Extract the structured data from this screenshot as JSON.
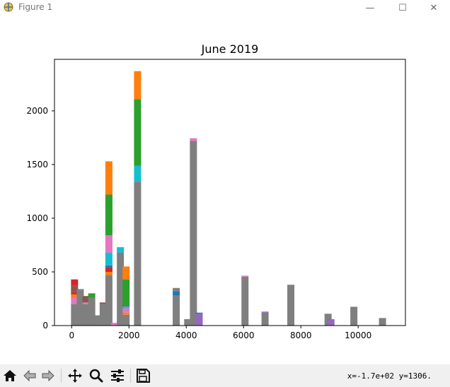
{
  "window": {
    "title": "Figure 1",
    "minimize_glyph": "—",
    "maximize_glyph": "☐",
    "close_glyph": "✕",
    "app_icon": "matplotlib-figure-icon"
  },
  "toolbar": {
    "buttons": [
      {
        "name": "home",
        "icon": "home-icon"
      },
      {
        "name": "back",
        "icon": "arrow-left-icon"
      },
      {
        "name": "forward",
        "icon": "arrow-right-icon"
      },
      {
        "name": "pan",
        "icon": "move-icon"
      },
      {
        "name": "zoom",
        "icon": "magnifier-icon"
      },
      {
        "name": "configure-subplots",
        "icon": "sliders-icon"
      },
      {
        "name": "save",
        "icon": "floppy-disk-icon"
      }
    ],
    "coordinates": "x=-1.7e+02 y=1306."
  },
  "chart_data": {
    "type": "bar",
    "title": "June 2019",
    "xlabel": "",
    "ylabel": "",
    "xlim": [
      -600,
      11650
    ],
    "ylim": [
      0,
      2480
    ],
    "xticks": [
      0,
      2000,
      4000,
      6000,
      8000,
      10000
    ],
    "xtick_labels": [
      "0",
      "2000",
      "4000",
      "6000",
      "8000",
      "10000"
    ],
    "yticks": [
      0,
      500,
      1000,
      1500,
      2000
    ],
    "ytick_labels": [
      "0",
      "500",
      "1000",
      "1500",
      "2000"
    ],
    "grid": false,
    "legend": "none",
    "colors": {
      "blue": "#1f77b4",
      "orange": "#ff7f0e",
      "green": "#2ca02c",
      "red": "#d62728",
      "purple": "#9467bd",
      "brown": "#8c564b",
      "pink": "#e377c2",
      "gray": "#7f7f7f",
      "cyan": "#17becf"
    },
    "bars": [
      {
        "x": 100,
        "segments": [
          {
            "color": "gray",
            "value": 200
          },
          {
            "color": "pink",
            "value": 60
          },
          {
            "color": "orange",
            "value": 30
          },
          {
            "color": "red",
            "value": 20
          },
          {
            "color": "brown",
            "value": 60
          },
          {
            "color": "red",
            "value": 60
          }
        ]
      },
      {
        "x": 300,
        "segments": [
          {
            "color": "gray",
            "value": 330
          },
          {
            "color": "purple",
            "value": 10
          }
        ]
      },
      {
        "x": 500,
        "segments": [
          {
            "color": "gray",
            "value": 200
          },
          {
            "color": "pink",
            "value": 15
          },
          {
            "color": "brown",
            "value": 60
          }
        ]
      },
      {
        "x": 700,
        "segments": [
          {
            "color": "gray",
            "value": 260
          },
          {
            "color": "green",
            "value": 40
          }
        ]
      },
      {
        "x": 900,
        "segments": [
          {
            "color": "gray",
            "value": 95
          }
        ]
      },
      {
        "x": 1100,
        "segments": [
          {
            "color": "gray",
            "value": 200
          },
          {
            "color": "brown",
            "value": 15
          }
        ]
      },
      {
        "x": 1300,
        "segments": [
          {
            "color": "gray",
            "value": 470
          },
          {
            "color": "orange",
            "value": 30
          },
          {
            "color": "red",
            "value": 40
          },
          {
            "color": "blue",
            "value": 20
          },
          {
            "color": "cyan",
            "value": 120
          },
          {
            "color": "pink",
            "value": 160
          },
          {
            "color": "green",
            "value": 380
          },
          {
            "color": "orange",
            "value": 310
          }
        ]
      },
      {
        "x": 1500,
        "segments": [
          {
            "color": "pink",
            "value": 25
          }
        ]
      },
      {
        "x": 1700,
        "segments": [
          {
            "color": "gray",
            "value": 680
          },
          {
            "color": "cyan",
            "value": 50
          }
        ]
      },
      {
        "x": 1900,
        "segments": [
          {
            "color": "gray",
            "value": 100
          },
          {
            "color": "orange",
            "value": 20
          },
          {
            "color": "pink",
            "value": 40
          },
          {
            "color": "cyan",
            "value": 20
          },
          {
            "color": "red",
            "value": 10
          },
          {
            "color": "green",
            "value": 240
          },
          {
            "color": "orange",
            "value": 120
          }
        ]
      },
      {
        "x": 2300,
        "segments": [
          {
            "color": "gray",
            "value": 1340
          },
          {
            "color": "cyan",
            "value": 150
          },
          {
            "color": "green",
            "value": 620
          },
          {
            "color": "orange",
            "value": 260
          }
        ]
      },
      {
        "x": 3650,
        "segments": [
          {
            "color": "gray",
            "value": 280
          },
          {
            "color": "blue",
            "value": 40
          },
          {
            "color": "gray",
            "value": 30
          }
        ]
      },
      {
        "x": 4050,
        "segments": [
          {
            "color": "gray",
            "value": 60
          }
        ]
      },
      {
        "x": 4250,
        "segments": [
          {
            "color": "gray",
            "value": 1720
          },
          {
            "color": "pink",
            "value": 25
          }
        ]
      },
      {
        "x": 4450,
        "segments": [
          {
            "color": "purple",
            "value": 110
          },
          {
            "color": "blue",
            "value": 10
          }
        ]
      },
      {
        "x": 6050,
        "segments": [
          {
            "color": "gray",
            "value": 455
          },
          {
            "color": "pink",
            "value": 10
          }
        ]
      },
      {
        "x": 6750,
        "segments": [
          {
            "color": "gray",
            "value": 120
          },
          {
            "color": "purple",
            "value": 10
          }
        ]
      },
      {
        "x": 7650,
        "segments": [
          {
            "color": "gray",
            "value": 380
          }
        ]
      },
      {
        "x": 8950,
        "segments": [
          {
            "color": "gray",
            "value": 110
          }
        ]
      },
      {
        "x": 9050,
        "segments": [
          {
            "color": "purple",
            "value": 60
          }
        ]
      },
      {
        "x": 9850,
        "segments": [
          {
            "color": "gray",
            "value": 175
          }
        ]
      },
      {
        "x": 10850,
        "segments": [
          {
            "color": "gray",
            "value": 70
          }
        ]
      }
    ]
  }
}
